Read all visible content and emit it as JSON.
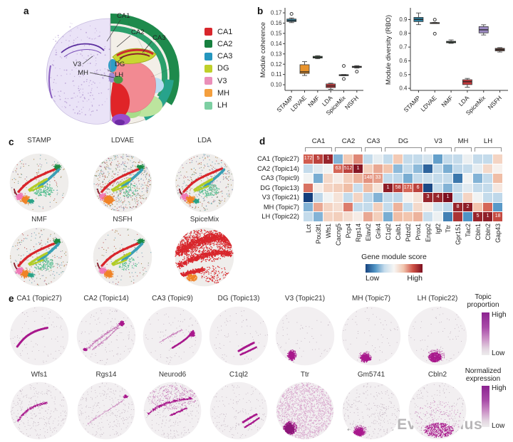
{
  "panels": {
    "a": {
      "label": "a",
      "annotations": {
        "ca1": "CA1",
        "ca2": "CA2",
        "ca3": "CA3",
        "v3": "V3",
        "mh": "MH",
        "dg": "DG",
        "lh": "LH"
      },
      "legend": [
        {
          "label": "CA1",
          "color": "#d8262c"
        },
        {
          "label": "CA2",
          "color": "#17803f"
        },
        {
          "label": "CA3",
          "color": "#2596be"
        },
        {
          "label": "DG",
          "color": "#bfd02a"
        },
        {
          "label": "V3",
          "color": "#ea8fb9"
        },
        {
          "label": "MH",
          "color": "#f49f3e"
        },
        {
          "label": "LH",
          "color": "#7dcfa2"
        }
      ]
    },
    "b": {
      "label": "b"
    },
    "c": {
      "label": "c",
      "methods": [
        "STAMP",
        "LDVAE",
        "LDA",
        "NMF",
        "NSFH",
        "SpiceMix"
      ]
    },
    "d": {
      "label": "d",
      "legend": {
        "title": "Gene module score",
        "low": "Low",
        "high": "High"
      }
    },
    "e": {
      "label": "e",
      "row1": {
        "items": [
          "CA1 (Topic27)",
          "CA2 (Topic14)",
          "CA3 (Topic9)",
          "DG (Topic13)",
          "V3 (Topic21)",
          "MH (Topic7)",
          "LH (Topic22)"
        ],
        "colorbar": {
          "title_lines": [
            "Topic",
            "proportion"
          ],
          "high": "High",
          "low": "Low"
        }
      },
      "row2": {
        "items": [
          "Wfs1",
          "Rgs14",
          "Neurod6",
          "C1ql2",
          "Ttr",
          "Gm5741",
          "Cbln2"
        ],
        "colorbar": {
          "title_lines": [
            "Normalized",
            "expression"
          ],
          "high": "High",
          "low": "Low"
        }
      }
    }
  },
  "watermark": {
    "text": "知乎 @Evil Genius"
  },
  "palette": {
    "spatial": {
      "red": "#d8262c",
      "green_cap": "#1b8a43",
      "teal": "#3b9fb5",
      "dg": "#b2cc28",
      "lh": "#5abf92",
      "pink": "#f07ab8",
      "orange": "#f08326",
      "maroon": "#8b1f2d",
      "teal_patch": "#2aa387"
    },
    "expression": {
      "magenta": "#a8188c",
      "light": "#c06ab0",
      "dark": "#8c1578",
      "pale": "#d9a9ce"
    }
  },
  "chart_data": {
    "boxplots": [
      {
        "type": "box",
        "ylabel": "Module coherence",
        "categories": [
          "STAMP",
          "LDVAE",
          "NMF",
          "LDA",
          "SpiceMix",
          "NSFH"
        ],
        "colors": [
          "#2e7f9f",
          "#e8932c",
          "#3f8a4d",
          "#c53a3d",
          "#9c8ac2",
          "#6e463c"
        ],
        "ylim": [
          0.0945,
          0.1735
        ],
        "tick_values": [
          0.1,
          0.11,
          0.12,
          0.13,
          0.14,
          0.15,
          0.16,
          0.17
        ],
        "tick_labels": [
          "0.10",
          "0.11",
          "0.12",
          "0.13",
          "0.14",
          "0.15",
          "0.16",
          "0.17"
        ],
        "stats": [
          {
            "whislo": 0.1605,
            "q1": 0.1615,
            "med": 0.1625,
            "q3": 0.164,
            "whishi": 0.165,
            "outliers": [
              0.169
            ]
          },
          {
            "whislo": 0.109,
            "q1": 0.111,
            "med": 0.1125,
            "q3": 0.1195,
            "whishi": 0.1225,
            "outliers": []
          },
          {
            "whislo": 0.1253,
            "q1": 0.126,
            "med": 0.1268,
            "q3": 0.1277,
            "whishi": 0.1283,
            "outliers": []
          },
          {
            "whislo": 0.0955,
            "q1": 0.0972,
            "med": 0.0988,
            "q3": 0.1008,
            "whishi": 0.1015,
            "outliers": []
          },
          {
            "whislo": 0.1088,
            "q1": 0.109,
            "med": 0.1094,
            "q3": 0.1098,
            "whishi": 0.11,
            "outliers": [
              0.1183,
              0.1057
            ]
          },
          {
            "whislo": 0.1162,
            "q1": 0.1168,
            "med": 0.1173,
            "q3": 0.118,
            "whishi": 0.1186,
            "outliers": [
              0.1128
            ]
          }
        ]
      },
      {
        "type": "box",
        "ylabel": "Module diversity (RBO)",
        "categories": [
          "STAMP",
          "LDVAE",
          "NMF",
          "LDA",
          "SpiceMix",
          "NSFH"
        ],
        "colors": [
          "#2e7f9f",
          "#e8932c",
          "#3f8a4d",
          "#c53a3d",
          "#9c8ac2",
          "#6e463c"
        ],
        "ylim": [
          0.385,
          0.975
        ],
        "tick_values": [
          0.4,
          0.5,
          0.6,
          0.7,
          0.8,
          0.9
        ],
        "tick_labels": [
          "0.4",
          "0.5",
          "0.6",
          "0.7",
          "0.8",
          "0.9"
        ],
        "stats": [
          {
            "whislo": 0.863,
            "q1": 0.885,
            "med": 0.901,
            "q3": 0.916,
            "whishi": 0.948,
            "outliers": []
          },
          {
            "whislo": 0.871,
            "q1": 0.873,
            "med": 0.8755,
            "q3": 0.878,
            "whishi": 0.879,
            "outliers": [
              0.899,
              0.797
            ]
          },
          {
            "whislo": 0.727,
            "q1": 0.731,
            "med": 0.7365,
            "q3": 0.742,
            "whishi": 0.752,
            "outliers": []
          },
          {
            "whislo": 0.408,
            "q1": 0.427,
            "med": 0.448,
            "q3": 0.4625,
            "whishi": 0.472,
            "outliers": []
          },
          {
            "whislo": 0.788,
            "q1": 0.803,
            "med": 0.8255,
            "q3": 0.849,
            "whishi": 0.862,
            "outliers": []
          },
          {
            "whislo": 0.664,
            "q1": 0.672,
            "med": 0.6815,
            "q3": 0.691,
            "whishi": 0.696,
            "outliers": []
          }
        ]
      }
    ],
    "heatmap": {
      "type": "heatmap",
      "rows": [
        "CA1 (Topic27)",
        "CA2 (Topic14)",
        "CA3 (Topic9)",
        "DG (Topic13)",
        "V3 (Topic21)",
        "MH (Topic7)",
        "LH (Topic22)"
      ],
      "genes": [
        "Lct",
        "Pou3f1",
        "Wfs1",
        "Cacng5",
        "Pcp4",
        "Rgs14",
        "Elavl2",
        "Grik4",
        "C1ql2",
        "Calb1",
        "Pdzd2",
        "Prox1",
        "Enpp2",
        "Igf2",
        "Ttr",
        "Gpr151",
        "Tac2",
        "Cbln1",
        "Cbln2",
        "Gap43"
      ],
      "groups": [
        {
          "label": "CA1",
          "start": 0,
          "span": 3
        },
        {
          "label": "CA2",
          "start": 3,
          "span": 3
        },
        {
          "label": "CA3",
          "start": 6,
          "span": 2
        },
        {
          "label": "DG",
          "start": 8,
          "span": 4
        },
        {
          "label": "V3",
          "start": 12,
          "span": 3
        },
        {
          "label": "MH",
          "start": 15,
          "span": 2
        },
        {
          "label": "LH",
          "start": 17,
          "span": 3
        }
      ],
      "value_range": [
        -3,
        3
      ],
      "values": [
        [
          2.0,
          2.3,
          2.7,
          -1.6,
          0.9,
          1.6,
          -0.9,
          -0.3,
          -0.9,
          0.9,
          -0.9,
          -0.9,
          -0.6,
          -1.9,
          -0.9,
          -0.9,
          -0.2,
          -0.9,
          -0.9,
          0.7
        ],
        [
          -0.9,
          -0.4,
          -0.1,
          1.9,
          2.3,
          2.9,
          0.8,
          1.3,
          1.0,
          -1.5,
          -0.9,
          -1.5,
          -2.6,
          -0.9,
          -1.7,
          -1.0,
          -0.9,
          -0.3,
          0.6,
          0.1
        ],
        [
          -0.1,
          -1.7,
          0.6,
          0.2,
          0.8,
          1.2,
          1.5,
          1.4,
          -0.9,
          -1.0,
          -1.7,
          -0.9,
          -0.8,
          -0.9,
          -0.9,
          -2.4,
          -0.1,
          -1.6,
          -0.9,
          1.1
        ],
        [
          1.8,
          0.2,
          0.7,
          0.8,
          1.1,
          -0.8,
          1.1,
          0.4,
          2.8,
          2.3,
          1.9,
          2.3,
          -2.9,
          -0.9,
          -1.6,
          -0.9,
          -0.4,
          -0.9,
          -0.9,
          0.3
        ],
        [
          -3.0,
          -1.0,
          -0.1,
          0.4,
          -0.9,
          0.7,
          -1.0,
          -1.6,
          -0.9,
          -1.0,
          0.1,
          0.4,
          2.7,
          2.7,
          3.0,
          -0.9,
          0.7,
          -0.1,
          -0.9,
          -1.0
        ],
        [
          -1.6,
          1.3,
          0.7,
          0.5,
          1.7,
          -0.9,
          -0.9,
          0.8,
          -0.9,
          1.2,
          -0.9,
          0.6,
          0.2,
          -0.6,
          -1.0,
          2.7,
          2.8,
          1.0,
          1.9,
          -2.0
        ],
        [
          -0.9,
          -1.6,
          0.7,
          0.8,
          0.5,
          0.2,
          1.3,
          0.8,
          -1.7,
          1.1,
          1.0,
          1.2,
          -0.8,
          -0.2,
          -2.3,
          2.5,
          -2.1,
          2.7,
          2.8,
          2.2
        ]
      ],
      "annotations": [
        [
          0,
          0,
          "172"
        ],
        [
          0,
          1,
          "5"
        ],
        [
          0,
          2,
          "1"
        ],
        [
          1,
          3,
          "63"
        ],
        [
          1,
          4,
          "512"
        ],
        [
          1,
          5,
          "1"
        ],
        [
          2,
          6,
          "148"
        ],
        [
          2,
          7,
          "33"
        ],
        [
          3,
          8,
          "1"
        ],
        [
          3,
          9,
          "58"
        ],
        [
          3,
          10,
          "171"
        ],
        [
          3,
          11,
          "6"
        ],
        [
          4,
          12,
          "3"
        ],
        [
          4,
          13,
          "4"
        ],
        [
          4,
          14,
          "1"
        ],
        [
          5,
          15,
          "8"
        ],
        [
          5,
          16,
          "2"
        ],
        [
          6,
          17,
          "5"
        ],
        [
          6,
          18,
          "1"
        ],
        [
          6,
          19,
          "18"
        ]
      ],
      "legend": {
        "title": "Gene module score",
        "low": "Low",
        "high": "High"
      }
    },
    "spatial_maps": {
      "panel_c_methods": [
        "STAMP",
        "LDVAE",
        "LDA",
        "NMF",
        "NSFH",
        "SpiceMix"
      ],
      "panel_e_row1": [
        "CA1 (Topic27)",
        "CA2 (Topic14)",
        "CA3 (Topic9)",
        "DG (Topic13)",
        "V3 (Topic21)",
        "MH (Topic7)",
        "LH (Topic22)"
      ],
      "panel_e_row2": [
        "Wfs1",
        "Rgs14",
        "Neurod6",
        "C1ql2",
        "Ttr",
        "Gm5741",
        "Cbln2"
      ]
    }
  }
}
